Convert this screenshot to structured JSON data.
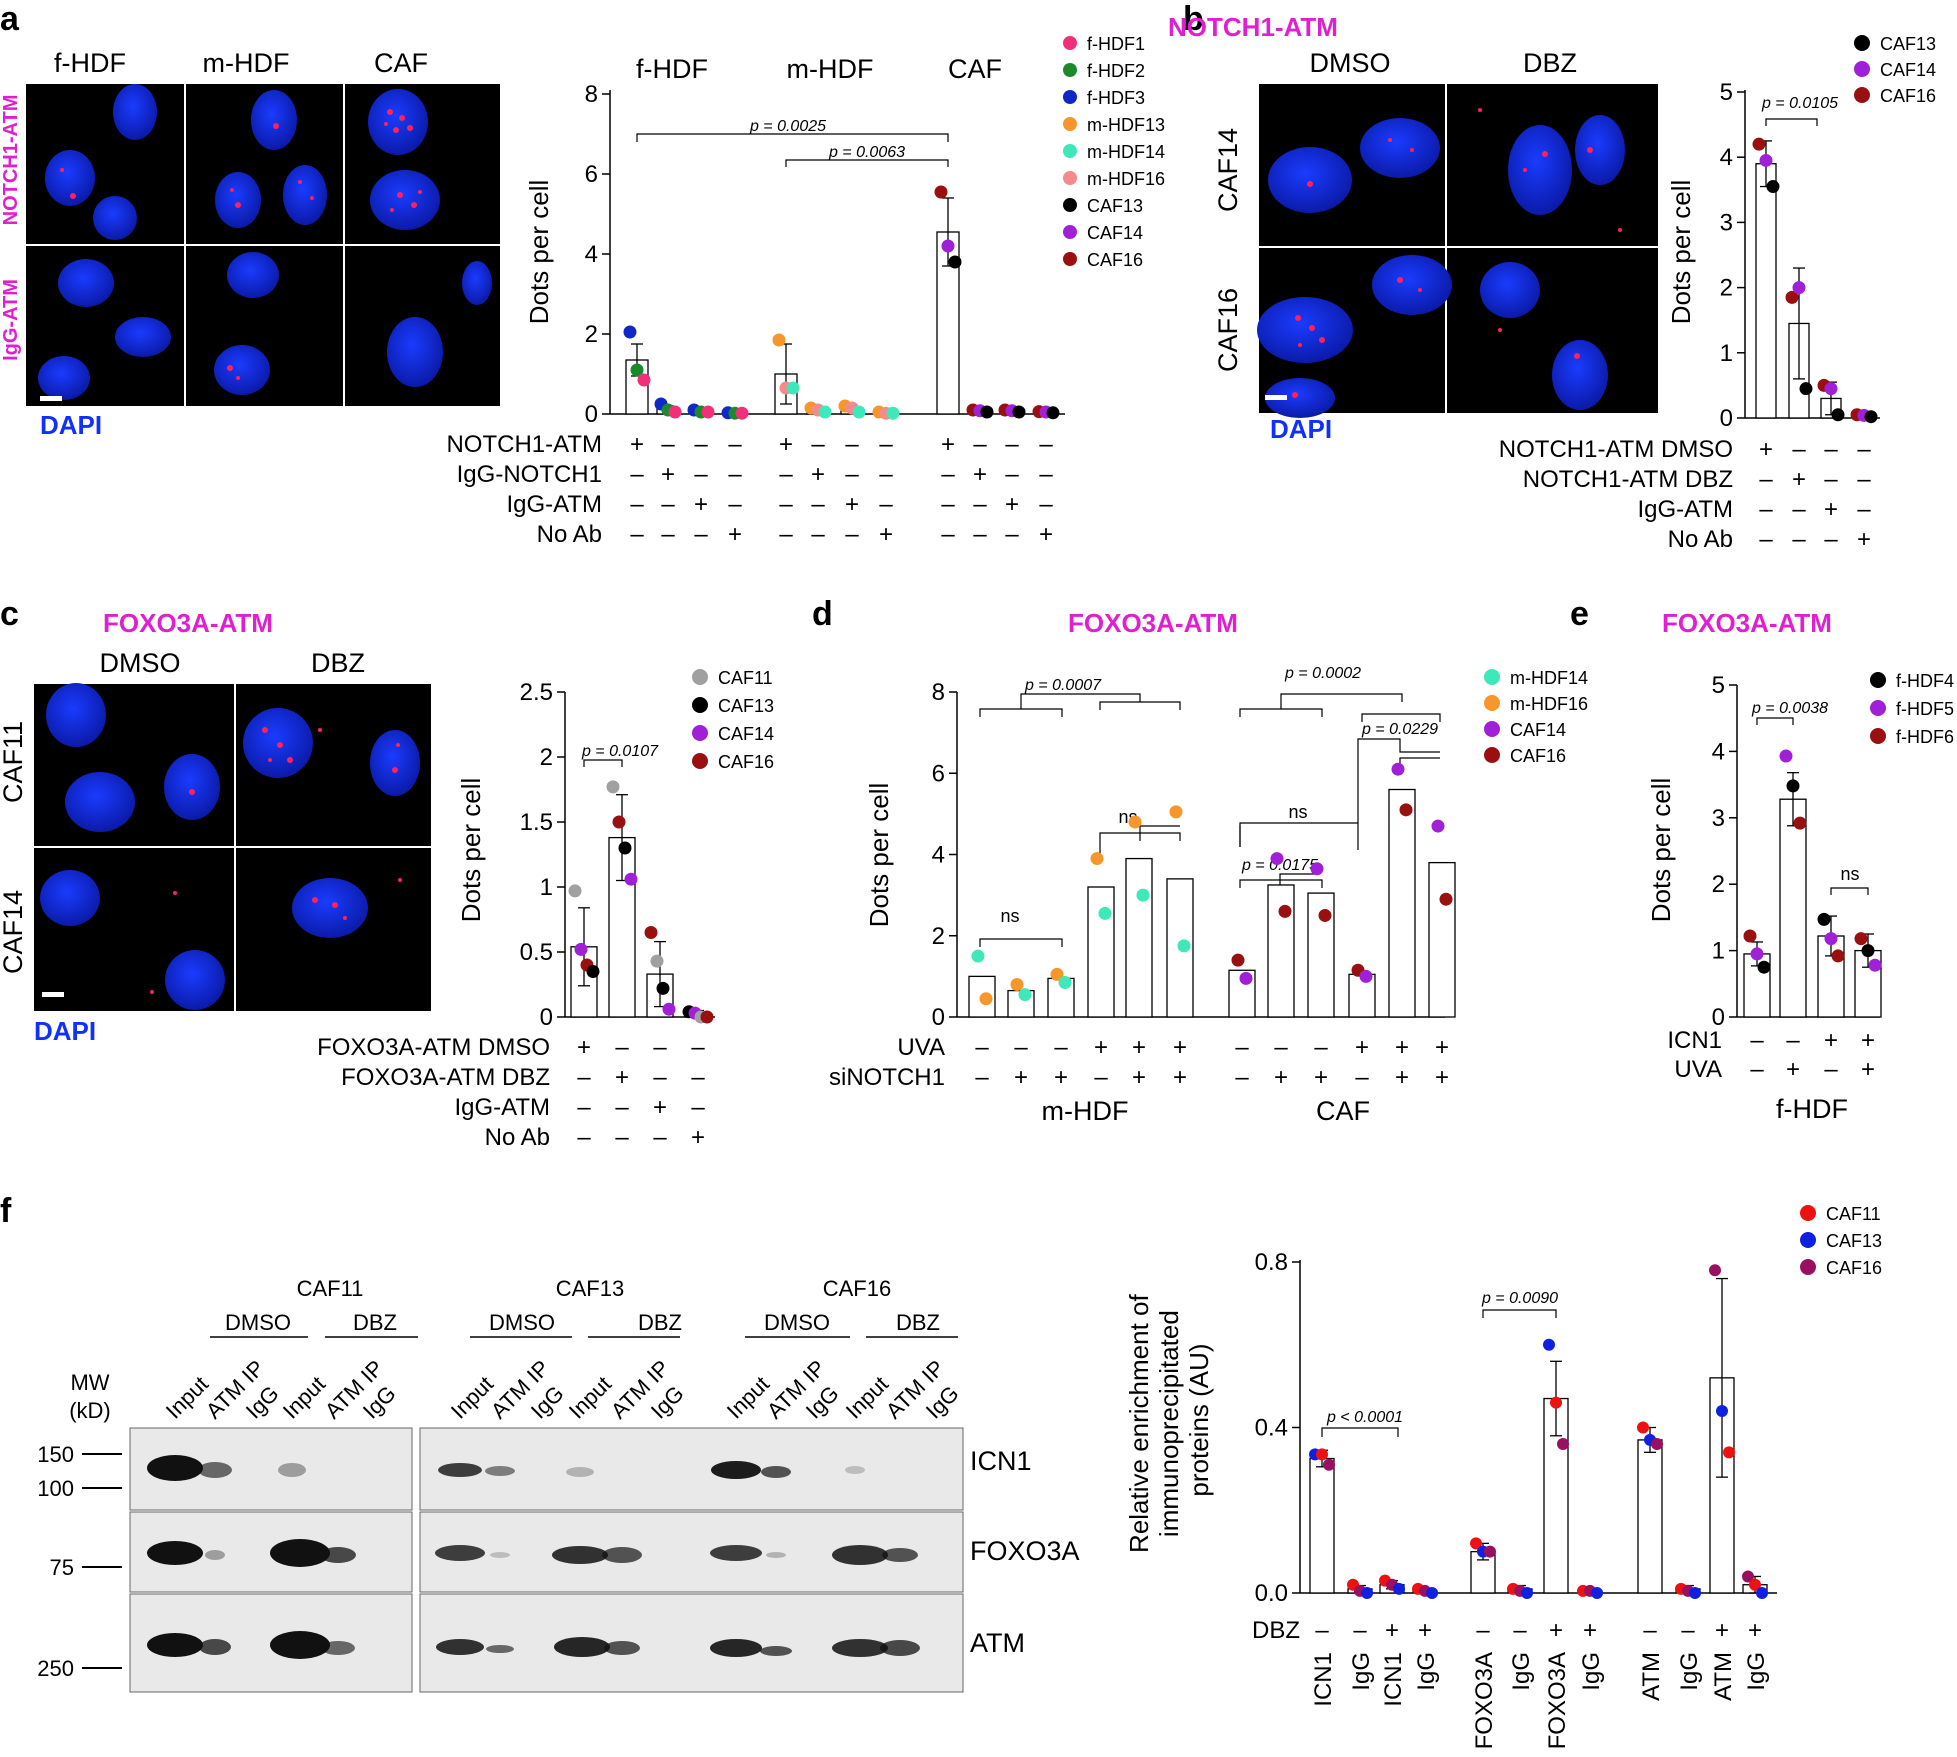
{
  "panel_labels": {
    "a": "a",
    "b": "b",
    "c": "c",
    "d": "d",
    "e": "e",
    "f": "f"
  },
  "dapi": "DAPI",
  "panel_a": {
    "image_columns": [
      "f-HDF",
      "m-HDF",
      "CAF"
    ],
    "image_rows": [
      "NOTCH1-ATM",
      "IgG-ATM"
    ],
    "group_titles": [
      "f-HDF",
      "m-HDF",
      "CAF"
    ],
    "ylabel": "Dots per cell",
    "legend": [
      {
        "name": "f-HDF1",
        "color": "#f0307a"
      },
      {
        "name": "f-HDF2",
        "color": "#1a8a2a"
      },
      {
        "name": "f-HDF3",
        "color": "#1028c8"
      },
      {
        "name": "m-HDF13",
        "color": "#f7962a"
      },
      {
        "name": "m-HDF14",
        "color": "#3ee8b8"
      },
      {
        "name": "m-HDF16",
        "color": "#f58a8a"
      },
      {
        "name": "CAF13",
        "color": "#000000"
      },
      {
        "name": "CAF14",
        "color": "#a020d8"
      },
      {
        "name": "CAF16",
        "color": "#9a1010"
      }
    ],
    "pvalues": [
      "p = 0.0025",
      "p = 0.0063"
    ],
    "conditions": [
      {
        "label": "NOTCH1-ATM",
        "marks": [
          "+",
          "–",
          "–",
          "–",
          "+",
          "–",
          "–",
          "–",
          "+",
          "–",
          "–",
          "–"
        ]
      },
      {
        "label": "IgG-NOTCH1",
        "marks": [
          "–",
          "+",
          "–",
          "–",
          "–",
          "+",
          "–",
          "–",
          "–",
          "+",
          "–",
          "–"
        ]
      },
      {
        "label": "IgG-ATM",
        "marks": [
          "–",
          "–",
          "+",
          "–",
          "–",
          "–",
          "+",
          "–",
          "–",
          "–",
          "+",
          "–"
        ]
      },
      {
        "label": "No Ab",
        "marks": [
          "–",
          "–",
          "–",
          "+",
          "–",
          "–",
          "–",
          "+",
          "–",
          "–",
          "–",
          "+"
        ]
      }
    ]
  },
  "panel_b": {
    "title": "NOTCH1-ATM",
    "image_columns": [
      "DMSO",
      "DBZ"
    ],
    "image_rows": [
      "CAF14",
      "CAF16"
    ],
    "ylabel": "Dots per cell",
    "legend": [
      {
        "name": "CAF13",
        "color": "#000000"
      },
      {
        "name": "CAF14",
        "color": "#a020d8"
      },
      {
        "name": "CAF16",
        "color": "#9a1010"
      }
    ],
    "pvalue": "p = 0.0105",
    "conditions": [
      {
        "label": "NOTCH1-ATM DMSO",
        "marks": [
          "+",
          "–",
          "–",
          "–"
        ]
      },
      {
        "label": "NOTCH1-ATM DBZ",
        "marks": [
          "–",
          "+",
          "–",
          "–"
        ]
      },
      {
        "label": "IgG-ATM",
        "marks": [
          "–",
          "–",
          "+",
          "–"
        ]
      },
      {
        "label": "No Ab",
        "marks": [
          "–",
          "–",
          "–",
          "+"
        ]
      }
    ]
  },
  "panel_c": {
    "title": "FOXO3A-ATM",
    "image_columns": [
      "DMSO",
      "DBZ"
    ],
    "image_rows": [
      "CAF11",
      "CAF14"
    ],
    "ylabel": "Dots per cell",
    "legend": [
      {
        "name": "CAF11",
        "color": "#a0a0a0"
      },
      {
        "name": "CAF13",
        "color": "#000000"
      },
      {
        "name": "CAF14",
        "color": "#a020d8"
      },
      {
        "name": "CAF16",
        "color": "#9a1010"
      }
    ],
    "pvalue": "p = 0.0107",
    "conditions": [
      {
        "label": "FOXO3A-ATM DMSO",
        "marks": [
          "+",
          "–",
          "–",
          "–"
        ]
      },
      {
        "label": "FOXO3A-ATM DBZ",
        "marks": [
          "–",
          "+",
          "–",
          "–"
        ]
      },
      {
        "label": "IgG-ATM",
        "marks": [
          "–",
          "–",
          "+",
          "–"
        ]
      },
      {
        "label": "No Ab",
        "marks": [
          "–",
          "–",
          "–",
          "+"
        ]
      }
    ]
  },
  "panel_d": {
    "title": "FOXO3A-ATM",
    "ylabel": "Dots per cell",
    "legend": [
      {
        "name": "m-HDF14",
        "color": "#3ee8b8"
      },
      {
        "name": "m-HDF16",
        "color": "#f7962a"
      },
      {
        "name": "CAF14",
        "color": "#a020d8"
      },
      {
        "name": "CAF16",
        "color": "#9a1010"
      }
    ],
    "pvalues": [
      "p = 0.0007",
      "p = 0.0002",
      "p = 0.0229",
      "p = 0.0175"
    ],
    "ns": "ns",
    "conditions": [
      {
        "label": "UVA",
        "marks": [
          "–",
          "–",
          "–",
          "+",
          "+",
          "+",
          "–",
          "–",
          "–",
          "+",
          "+",
          "+"
        ]
      },
      {
        "label": "siNOTCH1",
        "marks": [
          "–",
          "+",
          "+",
          "–",
          "+",
          "+",
          "–",
          "+",
          "+",
          "–",
          "+",
          "+"
        ]
      }
    ],
    "group_labels": [
      "m-HDF",
      "CAF"
    ]
  },
  "panel_e": {
    "title": "FOXO3A-ATM",
    "ylabel": "Dots per cell",
    "legend": [
      {
        "name": "f-HDF4",
        "color": "#000000"
      },
      {
        "name": "f-HDF5",
        "color": "#a020d8"
      },
      {
        "name": "f-HDF6",
        "color": "#9a1010"
      }
    ],
    "pvalue": "p = 0.0038",
    "ns": "ns",
    "conditions": [
      {
        "label": "ICN1",
        "marks": [
          "–",
          "–",
          "+",
          "+"
        ]
      },
      {
        "label": "UVA",
        "marks": [
          "–",
          "+",
          "–",
          "+"
        ]
      }
    ],
    "group_label": "f-HDF"
  },
  "panel_f": {
    "blot": {
      "samples": [
        "CAF11",
        "CAF13",
        "CAF16"
      ],
      "treatments": [
        "DMSO",
        "DBZ"
      ],
      "lanes": [
        "Input",
        "ATM IP",
        "IgG"
      ],
      "mw_title": "MW",
      "mw_unit": "(kD)",
      "mw_markers": [
        "150",
        "100",
        "75",
        "250"
      ],
      "rows": [
        "ICN1",
        "FOXO3A",
        "ATM"
      ]
    },
    "ylabel": "Relative enrichment of immunoprecipitated proteins (AU)",
    "legend": [
      {
        "name": "CAF11",
        "color": "#ee1111"
      },
      {
        "name": "CAF13",
        "color": "#1020e0"
      },
      {
        "name": "CAF16",
        "color": "#9a1060"
      }
    ],
    "pvalues": [
      "p < 0.0001",
      "p = 0.0090"
    ],
    "dbz_label": "DBZ",
    "dbz_marks": [
      "–",
      "–",
      "+",
      "+",
      "–",
      "–",
      "+",
      "+",
      "–",
      "–",
      "+",
      "+"
    ],
    "x_labels": [
      "ICN1",
      "IgG",
      "ICN1",
      "IgG",
      "FOXO3A",
      "IgG",
      "FOXO3A",
      "IgG",
      "ATM",
      "IgG",
      "ATM",
      "IgG"
    ]
  },
  "chart_data": [
    {
      "panel": "a",
      "type": "bar",
      "categories": [
        "f-HDF NOTCH1-ATM",
        "f-HDF IgG-NOTCH1",
        "f-HDF IgG-ATM",
        "f-HDF No Ab",
        "m-HDF NOTCH1-ATM",
        "m-HDF IgG-NOTCH1",
        "m-HDF IgG-ATM",
        "m-HDF No Ab",
        "CAF NOTCH1-ATM",
        "CAF IgG-NOTCH1",
        "CAF IgG-ATM",
        "CAF No Ab"
      ],
      "values": [
        1.35,
        0.15,
        0.08,
        0.03,
        1.0,
        0.1,
        0.15,
        0.03,
        4.55,
        0.08,
        0.08,
        0.05
      ],
      "errors": [
        0.4,
        0.05,
        0.03,
        0.02,
        0.75,
        0.03,
        0.05,
        0.02,
        0.85,
        0.02,
        0.03,
        0.02
      ],
      "points": [
        [
          2.05,
          1.1,
          0.85
        ],
        [
          0.25,
          0.1,
          0.05
        ],
        [
          0.1,
          0.05,
          0.05
        ],
        [
          0.03,
          0.02,
          0.02
        ],
        [
          1.85,
          0.65,
          0.65
        ],
        [
          0.15,
          0.1,
          0.05
        ],
        [
          0.2,
          0.15,
          0.05
        ],
        [
          0.05,
          0.02,
          0.02
        ],
        [
          5.55,
          4.2,
          3.8
        ],
        [
          0.1,
          0.08,
          0.05
        ],
        [
          0.1,
          0.08,
          0.05
        ],
        [
          0.06,
          0.05,
          0.03
        ]
      ],
      "point_series": [
        [
          "f-HDF3",
          "f-HDF2",
          "f-HDF1"
        ],
        [
          "f-HDF3",
          "f-HDF2",
          "f-HDF1"
        ],
        [
          "f-HDF3",
          "f-HDF2",
          "f-HDF1"
        ],
        [
          "f-HDF3",
          "f-HDF2",
          "f-HDF1"
        ],
        [
          "m-HDF13",
          "m-HDF16",
          "m-HDF14"
        ],
        [
          "m-HDF13",
          "m-HDF16",
          "m-HDF14"
        ],
        [
          "m-HDF13",
          "m-HDF16",
          "m-HDF14"
        ],
        [
          "m-HDF13",
          "m-HDF16",
          "m-HDF14"
        ],
        [
          "CAF16",
          "CAF14",
          "CAF13"
        ],
        [
          "CAF16",
          "CAF14",
          "CAF13"
        ],
        [
          "CAF16",
          "CAF14",
          "CAF13"
        ],
        [
          "CAF16",
          "CAF14",
          "CAF13"
        ]
      ],
      "ylabel": "Dots per cell",
      "ylim": [
        0,
        8
      ],
      "yticks": [
        0,
        2,
        4,
        6,
        8
      ]
    },
    {
      "panel": "b",
      "type": "bar",
      "categories": [
        "NOTCH1-ATM DMSO",
        "NOTCH1-ATM DBZ",
        "IgG-ATM",
        "No Ab"
      ],
      "values": [
        3.9,
        1.45,
        0.3,
        0.03
      ],
      "errors": [
        0.35,
        0.85,
        0.25,
        0.02
      ],
      "points": [
        [
          4.2,
          3.95,
          3.55
        ],
        [
          1.85,
          2.0,
          0.45
        ],
        [
          0.5,
          0.45,
          0.05
        ],
        [
          0.05,
          0.04,
          0.02
        ]
      ],
      "point_series": [
        [
          "CAF16",
          "CAF14",
          "CAF13"
        ],
        [
          "CAF16",
          "CAF14",
          "CAF13"
        ],
        [
          "CAF16",
          "CAF14",
          "CAF13"
        ],
        [
          "CAF16",
          "CAF14",
          "CAF13"
        ]
      ],
      "ylabel": "Dots per cell",
      "ylim": [
        0,
        5
      ],
      "yticks": [
        0,
        1,
        2,
        3,
        4,
        5
      ]
    },
    {
      "panel": "c",
      "type": "bar",
      "categories": [
        "FOXO3A-ATM DMSO",
        "FOXO3A-ATM DBZ",
        "IgG-ATM",
        "No Ab"
      ],
      "values": [
        0.54,
        1.38,
        0.33,
        0.03
      ],
      "errors": [
        0.3,
        0.33,
        0.25,
        0.02
      ],
      "points": [
        [
          0.97,
          0.52,
          0.4,
          0.35
        ],
        [
          1.77,
          1.5,
          1.3,
          1.06
        ],
        [
          0.65,
          0.43,
          0.22,
          0.06
        ],
        [
          0.04,
          0.03,
          0.0,
          0.0
        ]
      ],
      "point_series": [
        [
          "CAF11",
          "CAF14",
          "CAF16",
          "CAF13"
        ],
        [
          "CAF11",
          "CAF16",
          "CAF13",
          "CAF14"
        ],
        [
          "CAF16",
          "CAF11",
          "CAF13",
          "CAF14"
        ],
        [
          "CAF13",
          "CAF14",
          "CAF11",
          "CAF16"
        ]
      ],
      "ylabel": "Dots per cell",
      "ylim": [
        0,
        2.5
      ],
      "yticks": [
        0,
        0.5,
        1.0,
        1.5,
        2.0,
        2.5
      ]
    },
    {
      "panel": "d",
      "type": "bar",
      "categories": [
        "m-HDF –/–",
        "m-HDF –/+",
        "m-HDF –/+",
        "m-HDF +/–",
        "m-HDF +/+",
        "m-HDF +/+",
        "CAF –/–",
        "CAF –/+",
        "CAF –/+",
        "CAF +/–",
        "CAF +/+",
        "CAF +/+"
      ],
      "values": [
        1.0,
        0.65,
        0.95,
        3.2,
        3.9,
        3.4,
        1.15,
        3.25,
        3.05,
        1.05,
        5.6,
        3.8
      ],
      "points": [
        [
          1.5,
          0.45
        ],
        [
          0.8,
          0.55
        ],
        [
          1.05,
          0.85
        ],
        [
          3.9,
          2.55
        ],
        [
          4.8,
          3.0
        ],
        [
          5.05,
          1.75
        ],
        [
          1.4,
          0.95
        ],
        [
          3.9,
          2.6
        ],
        [
          3.65,
          2.5
        ],
        [
          1.15,
          1.0
        ],
        [
          6.1,
          5.1
        ],
        [
          4.7,
          2.9
        ]
      ],
      "point_series": [
        [
          "m-HDF14",
          "m-HDF16"
        ],
        [
          "m-HDF16",
          "m-HDF14"
        ],
        [
          "m-HDF16",
          "m-HDF14"
        ],
        [
          "m-HDF16",
          "m-HDF14"
        ],
        [
          "m-HDF16",
          "m-HDF14"
        ],
        [
          "m-HDF16",
          "m-HDF14"
        ],
        [
          "CAF16",
          "CAF14"
        ],
        [
          "CAF14",
          "CAF16"
        ],
        [
          "CAF14",
          "CAF16"
        ],
        [
          "CAF16",
          "CAF14"
        ],
        [
          "CAF14",
          "CAF16"
        ],
        [
          "CAF14",
          "CAF16"
        ]
      ],
      "ylabel": "Dots per cell",
      "ylim": [
        0,
        8
      ],
      "yticks": [
        0,
        2,
        4,
        6,
        8
      ]
    },
    {
      "panel": "e",
      "type": "bar",
      "categories": [
        "ICN1– UVA–",
        "ICN1– UVA+",
        "ICN1+ UVA–",
        "ICN1+ UVA+"
      ],
      "values": [
        0.95,
        3.28,
        1.22,
        1.0
      ],
      "errors": [
        0.18,
        0.4,
        0.3,
        0.25
      ],
      "points": [
        [
          1.22,
          0.95,
          0.75
        ],
        [
          3.93,
          3.48,
          2.92
        ],
        [
          1.47,
          1.18,
          0.92
        ],
        [
          1.18,
          1.0,
          0.78
        ]
      ],
      "point_series": [
        [
          "f-HDF6",
          "f-HDF5",
          "f-HDF4"
        ],
        [
          "f-HDF5",
          "f-HDF4",
          "f-HDF6"
        ],
        [
          "f-HDF4",
          "f-HDF5",
          "f-HDF6"
        ],
        [
          "f-HDF6",
          "f-HDF4",
          "f-HDF5"
        ]
      ],
      "ylabel": "Dots per cell",
      "ylim": [
        0,
        5
      ],
      "yticks": [
        0,
        1,
        2,
        3,
        4,
        5
      ]
    },
    {
      "panel": "f",
      "type": "bar",
      "categories": [
        "ICN1",
        "IgG",
        "ICN1",
        "IgG",
        "FOXO3A",
        "IgG",
        "FOXO3A",
        "IgG",
        "ATM",
        "IgG",
        "ATM",
        "IgG"
      ],
      "values": [
        0.325,
        0.01,
        0.02,
        0.005,
        0.1,
        0.01,
        0.47,
        0.005,
        0.37,
        0.01,
        0.52,
        0.02
      ],
      "errors": [
        0.02,
        0.008,
        0.01,
        0.004,
        0.02,
        0.008,
        0.09,
        0.004,
        0.03,
        0.008,
        0.24,
        0.02
      ],
      "points": [
        [
          0.335,
          0.335,
          0.31
        ],
        [
          0.02,
          0.005,
          0.0
        ],
        [
          0.03,
          0.02,
          0.01
        ],
        [
          0.01,
          0.005,
          0.0
        ],
        [
          0.12,
          0.1,
          0.1
        ],
        [
          0.01,
          0.005,
          0.0
        ],
        [
          0.6,
          0.46,
          0.36
        ],
        [
          0.005,
          0.005,
          0.0
        ],
        [
          0.4,
          0.37,
          0.36
        ],
        [
          0.01,
          0.005,
          0.0
        ],
        [
          0.78,
          0.44,
          0.34
        ],
        [
          0.04,
          0.02,
          0.0
        ]
      ],
      "point_series": [
        [
          "CAF13",
          "CAF11",
          "CAF16"
        ],
        [
          "CAF11",
          "CAF16",
          "CAF13"
        ],
        [
          "CAF11",
          "CAF16",
          "CAF13"
        ],
        [
          "CAF11",
          "CAF16",
          "CAF13"
        ],
        [
          "CAF11",
          "CAF13",
          "CAF16"
        ],
        [
          "CAF11",
          "CAF16",
          "CAF13"
        ],
        [
          "CAF13",
          "CAF11",
          "CAF16"
        ],
        [
          "CAF11",
          "CAF16",
          "CAF13"
        ],
        [
          "CAF11",
          "CAF13",
          "CAF16"
        ],
        [
          "CAF11",
          "CAF16",
          "CAF13"
        ],
        [
          "CAF16",
          "CAF13",
          "CAF11"
        ],
        [
          "CAF16",
          "CAF11",
          "CAF13"
        ]
      ],
      "ylabel": "Relative enrichment of immunoprecipitated proteins (AU)",
      "ylim": [
        0,
        0.8
      ],
      "yticks": [
        "0.0",
        "0.4",
        "0.8"
      ]
    }
  ]
}
